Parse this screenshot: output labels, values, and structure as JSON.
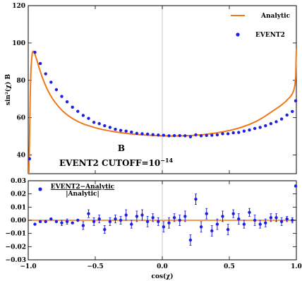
{
  "colors": {
    "analytic": "#f07818",
    "event2": "#1f1fe0",
    "zero_line": "#f07818",
    "frame": "#000000",
    "center_line": "#b8b8b8"
  },
  "chart_data": [
    {
      "type": "line",
      "panel": "top",
      "ylabel": "sin²(χ) B",
      "xlim": [
        -1,
        1
      ],
      "ylim": [
        30,
        120
      ],
      "xticks": [
        -1.0,
        -0.5,
        0.0,
        0.5,
        1.0
      ],
      "yticks": [
        40,
        60,
        80,
        100,
        120
      ],
      "legend": {
        "placement": "top-right",
        "entries": [
          "Analytic",
          "EVENT2"
        ]
      },
      "annotation": {
        "label": "B",
        "cutoff_base": "EVENT2 CUTOFF=10",
        "cutoff_exp": "−14"
      },
      "series": [
        {
          "name": "Analytic",
          "kind": "line",
          "x": [
            -0.995,
            -0.99,
            -0.985,
            -0.98,
            -0.975,
            -0.97,
            -0.965,
            -0.96,
            -0.955,
            -0.95,
            -0.94,
            -0.93,
            -0.92,
            -0.91,
            -0.9,
            -0.88,
            -0.86,
            -0.84,
            -0.82,
            -0.8,
            -0.77,
            -0.74,
            -0.7,
            -0.66,
            -0.62,
            -0.58,
            -0.54,
            -0.5,
            -0.45,
            -0.4,
            -0.35,
            -0.3,
            -0.25,
            -0.2,
            -0.15,
            -0.1,
            -0.05,
            0.0,
            0.05,
            0.1,
            0.15,
            0.2,
            0.25,
            0.3,
            0.35,
            0.4,
            0.45,
            0.5,
            0.55,
            0.6,
            0.65,
            0.7,
            0.75,
            0.8,
            0.85,
            0.88,
            0.9,
            0.92,
            0.94,
            0.95,
            0.96,
            0.97,
            0.98,
            0.985,
            0.99,
            0.995,
            1.0
          ],
          "y": [
            30,
            50,
            72,
            85,
            91,
            94.5,
            95.5,
            95.5,
            95,
            94,
            91.8,
            89.5,
            87,
            84.8,
            82.5,
            78.8,
            75.5,
            72.7,
            70.3,
            68.3,
            65.6,
            63.3,
            61,
            59.1,
            57.6,
            56.4,
            55.5,
            54.6,
            53.7,
            53,
            52.4,
            51.9,
            51.4,
            51.1,
            50.8,
            50.6,
            50.4,
            50.3,
            50.2,
            50.2,
            50.3,
            50.4,
            50.6,
            50.9,
            51.3,
            51.8,
            52.4,
            53.1,
            54,
            55.1,
            56.4,
            58,
            60,
            62.4,
            64.8,
            66.3,
            67.4,
            68.6,
            70.2,
            70.8,
            71.7,
            72.8,
            74.5,
            75.8,
            77.8,
            82,
            97
          ]
        },
        {
          "name": "EVENT2",
          "kind": "scatter",
          "x": [
            -0.99,
            -0.95,
            -0.91,
            -0.87,
            -0.83,
            -0.79,
            -0.75,
            -0.71,
            -0.67,
            -0.63,
            -0.59,
            -0.55,
            -0.51,
            -0.47,
            -0.43,
            -0.39,
            -0.35,
            -0.31,
            -0.27,
            -0.23,
            -0.19,
            -0.15,
            -0.11,
            -0.07,
            -0.03,
            0.01,
            0.05,
            0.09,
            0.13,
            0.17,
            0.21,
            0.25,
            0.29,
            0.33,
            0.37,
            0.41,
            0.45,
            0.49,
            0.53,
            0.57,
            0.61,
            0.65,
            0.69,
            0.73,
            0.77,
            0.81,
            0.85,
            0.89,
            0.93,
            0.97,
            0.995
          ],
          "y": [
            38,
            95,
            89,
            83.5,
            79,
            75,
            71.4,
            68.5,
            65.6,
            63.4,
            61.2,
            59.6,
            57.5,
            56.8,
            55.7,
            54.8,
            53.8,
            53.2,
            52.8,
            52.3,
            51.6,
            51.4,
            51.2,
            50.9,
            50.7,
            50.6,
            50.3,
            50.4,
            50.4,
            50.3,
            49.8,
            50.8,
            50.3,
            50.5,
            50.6,
            50.8,
            51.4,
            51.4,
            51.9,
            52.1,
            52.8,
            53.4,
            54.2,
            54.8,
            55.7,
            56.8,
            57.8,
            59.3,
            61.4,
            63.3,
            69
          ]
        }
      ]
    },
    {
      "type": "scatter",
      "panel": "bottom",
      "xlabel": "cos(χ)",
      "xlim": [
        -1,
        1
      ],
      "ylim": [
        -0.03,
        0.03
      ],
      "xticks": [
        -1.0,
        -0.5,
        0.0,
        0.5,
        1.0
      ],
      "xtick_labels": [
        "−1.0",
        "−0.5",
        "0.0",
        "0.5",
        "1.0"
      ],
      "yticks": [
        -0.03,
        -0.02,
        -0.01,
        0.0,
        0.01,
        0.02,
        0.03
      ],
      "ytick_labels": [
        "−0.03",
        "−0.02",
        "−0.01",
        "0.00",
        "0.01",
        "0.02",
        "0.03"
      ],
      "legend": {
        "placement": "top-left",
        "numerator": "EVENT2−Analytic",
        "denominator": "|Analytic|"
      },
      "series": [
        {
          "name": "EVENT2−Analytic / |Analytic|",
          "x": [
            -0.95,
            -0.91,
            -0.87,
            -0.83,
            -0.79,
            -0.75,
            -0.71,
            -0.67,
            -0.63,
            -0.59,
            -0.55,
            -0.51,
            -0.47,
            -0.43,
            -0.39,
            -0.35,
            -0.31,
            -0.27,
            -0.23,
            -0.19,
            -0.15,
            -0.11,
            -0.07,
            -0.03,
            0.01,
            0.05,
            0.09,
            0.13,
            0.17,
            0.21,
            0.25,
            0.29,
            0.33,
            0.37,
            0.41,
            0.45,
            0.49,
            0.53,
            0.57,
            0.61,
            0.65,
            0.69,
            0.73,
            0.77,
            0.81,
            0.85,
            0.89,
            0.93,
            0.97,
            1.0
          ],
          "y": [
            -0.003,
            -0.001,
            -0.001,
            0.001,
            -0.001,
            -0.002,
            -0.001,
            -0.002,
            0.0,
            -0.004,
            0.005,
            -0.001,
            0.001,
            -0.007,
            -0.001,
            0.001,
            0.0,
            0.004,
            -0.003,
            0.003,
            0.004,
            -0.001,
            0.002,
            -0.001,
            -0.005,
            -0.002,
            0.002,
            0.0,
            0.003,
            -0.015,
            0.016,
            -0.005,
            0.005,
            -0.008,
            -0.003,
            0.003,
            -0.007,
            0.005,
            0.001,
            -0.003,
            0.006,
            0.0,
            -0.003,
            -0.002,
            0.002,
            0.002,
            -0.001,
            0.001,
            0.0,
            0.026
          ],
          "err": [
            0.0,
            0.0,
            0.0,
            0.0,
            0.0,
            0.002,
            0.002,
            0.0,
            0.0,
            0.003,
            0.003,
            0.003,
            0.003,
            0.003,
            0.003,
            0.003,
            0.003,
            0.004,
            0.003,
            0.004,
            0.004,
            0.004,
            0.003,
            0.003,
            0.004,
            0.004,
            0.003,
            0.004,
            0.004,
            0.004,
            0.004,
            0.004,
            0.004,
            0.004,
            0.004,
            0.004,
            0.004,
            0.003,
            0.004,
            0.003,
            0.003,
            0.004,
            0.003,
            0.003,
            0.003,
            0.003,
            0.003,
            0.002,
            0.002,
            0.0
          ]
        }
      ]
    }
  ]
}
